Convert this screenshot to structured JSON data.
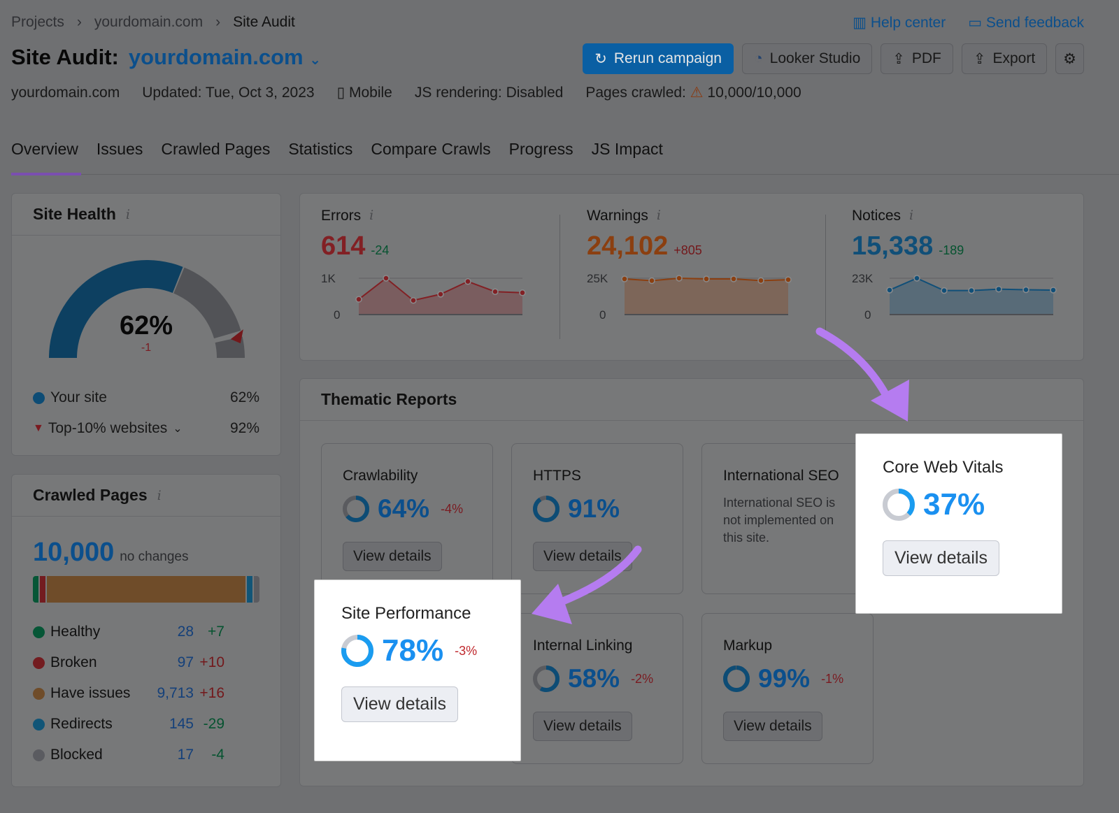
{
  "breadcrumb": [
    "Projects",
    "yourdomain.com",
    "Site Audit"
  ],
  "header": {
    "title": "Site Audit:",
    "domain": "yourdomain.com",
    "help": "Help center",
    "feedback": "Send feedback",
    "buttons": {
      "rerun": "Rerun campaign",
      "looker": "Looker Studio",
      "pdf": "PDF",
      "export": "Export"
    }
  },
  "meta": {
    "domain": "yourdomain.com",
    "updated": "Updated: Tue, Oct 3, 2023",
    "device": "Mobile",
    "js": "JS rendering: Disabled",
    "pages_label": "Pages crawled:",
    "pages": "10,000/10,000"
  },
  "tabs": [
    "Overview",
    "Issues",
    "Crawled Pages",
    "Statistics",
    "Compare Crawls",
    "Progress",
    "JS Impact"
  ],
  "site_health": {
    "title": "Site Health",
    "value": "62%",
    "change": "-1",
    "value_pct": 62,
    "top10_pct": 92,
    "legend": [
      {
        "label": "Your site",
        "value": "62%",
        "color": "#1a7fc1"
      },
      {
        "label": "Top-10% websites",
        "value": "92%",
        "color": "#c0282d"
      }
    ]
  },
  "crawled": {
    "title": "Crawled Pages",
    "total": "10,000",
    "change": "no changes",
    "rows": [
      {
        "label": "Healthy",
        "value": "28",
        "delta": "+7",
        "count": 28,
        "color": "#0a9d63",
        "dcolor": "#0a8a50"
      },
      {
        "label": "Broken",
        "value": "97",
        "delta": "+10",
        "count": 97,
        "color": "#d1333a",
        "dcolor": "#c0282d"
      },
      {
        "label": "Have issues",
        "value": "9,713",
        "delta": "+16",
        "count": 9713,
        "color": "#c98a4b",
        "dcolor": "#c0282d"
      },
      {
        "label": "Redirects",
        "value": "145",
        "delta": "-29",
        "count": 145,
        "color": "#1f9ad8",
        "dcolor": "#0a8a50"
      },
      {
        "label": "Blocked",
        "value": "17",
        "delta": "-4",
        "count": 17,
        "color": "#a3a6ae",
        "dcolor": "#0a8a50"
      }
    ]
  },
  "stats": [
    {
      "label": "Errors",
      "value": "614",
      "change": "-24",
      "color": "#d1333a",
      "chg_color": "#0a8a50",
      "ymax_label": "1K",
      "ymin_label": "0",
      "ymax": 1000,
      "points": [
        420,
        1000,
        390,
        560,
        910,
        630,
        600
      ]
    },
    {
      "label": "Warnings",
      "value": "24,102",
      "change": "+805",
      "color": "#e0661a",
      "chg_color": "#c0282d",
      "ymax_label": "25K",
      "ymin_label": "0",
      "ymax": 25000,
      "points": [
        24500,
        23300,
        25000,
        24500,
        24500,
        23400,
        24000
      ]
    },
    {
      "label": "Notices",
      "value": "15,338",
      "change": "-189",
      "color": "#1a7fc1",
      "chg_color": "#0a8a50",
      "ymax_label": "23K",
      "ymin_label": "0",
      "ymax": 23000,
      "points": [
        15500,
        23000,
        15200,
        15200,
        16100,
        15700,
        15500
      ]
    }
  ],
  "thematic": {
    "title": "Thematic Reports",
    "view": "View details",
    "cards": [
      {
        "name": "Crawlability",
        "pct": "64%",
        "value": 64,
        "delta": "-4%"
      },
      {
        "name": "HTTPS",
        "pct": "91%",
        "value": 91,
        "delta": ""
      },
      {
        "name": "International SEO",
        "note": "International SEO is not implemented on this site."
      },
      {
        "name": "Core Web Vitals",
        "pct": "37%",
        "value": 37,
        "delta": ""
      },
      {
        "name": "Site Performance",
        "pct": "78%",
        "value": 78,
        "delta": "-3%"
      },
      {
        "name": "Internal Linking",
        "pct": "58%",
        "value": 58,
        "delta": "-2%"
      },
      {
        "name": "Markup",
        "pct": "99%",
        "value": 99,
        "delta": "-1%"
      }
    ]
  },
  "colors": {
    "accent": "#006dca",
    "primary_button": "#008ff8",
    "tab_underline": "#a56cf0",
    "arrow": "#b57cf0"
  }
}
